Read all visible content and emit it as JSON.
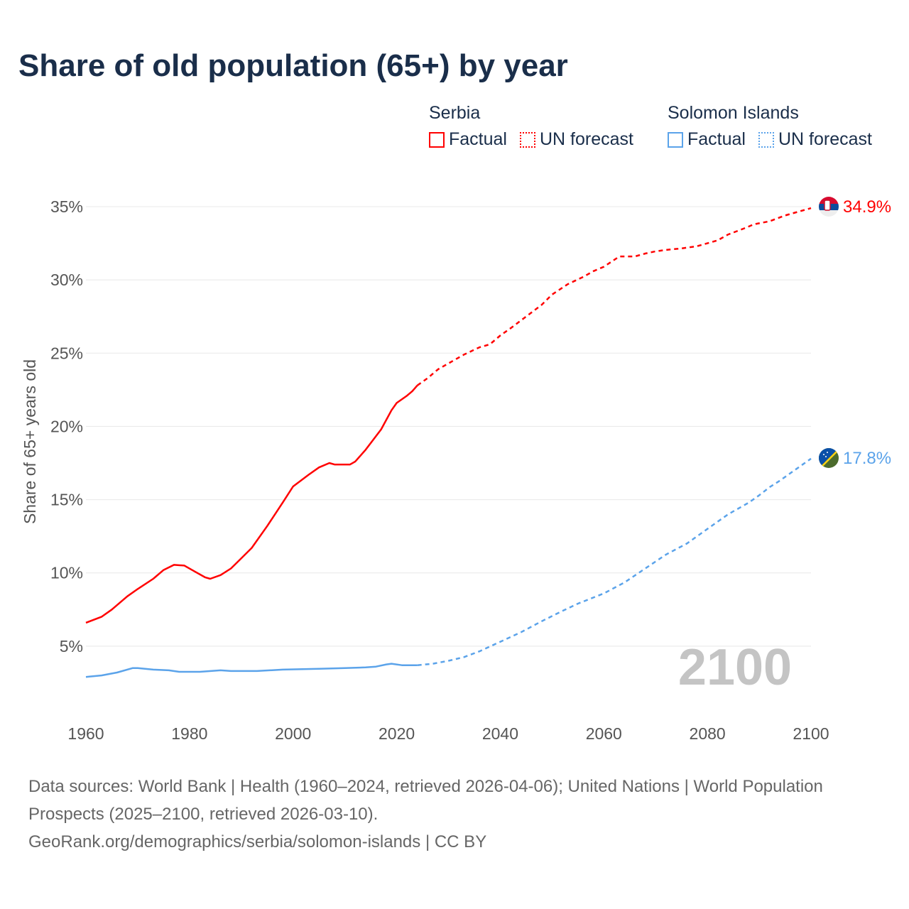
{
  "chart_data": {
    "type": "line",
    "title": "Share of old population (65+) by year",
    "xlabel": "",
    "ylabel": "Share of 65+ years old",
    "xlim": [
      1960,
      2100
    ],
    "ylim": [
      0,
      35
    ],
    "x_ticks": [
      "1960",
      "1980",
      "2000",
      "2020",
      "2040",
      "2060",
      "2080",
      "2100"
    ],
    "y_ticks": [
      {
        "v": 5,
        "label": "5%"
      },
      {
        "v": 10,
        "label": "10%"
      },
      {
        "v": 15,
        "label": "15%"
      },
      {
        "v": 20,
        "label": "20%"
      },
      {
        "v": 25,
        "label": "25%"
      },
      {
        "v": 30,
        "label": "30%"
      },
      {
        "v": 35,
        "label": "35%"
      }
    ],
    "grid": true,
    "year_watermark": "2100",
    "legend": {
      "placement": "top-right",
      "groups": [
        {
          "name": "Serbia",
          "items": [
            "Factual",
            "UN forecast"
          ],
          "color": "#ff0000"
        },
        {
          "name": "Solomon Islands",
          "items": [
            "Factual",
            "UN forecast"
          ],
          "color": "#5ba3ea"
        }
      ]
    },
    "series": [
      {
        "name": "Serbia",
        "color": "#ff0000",
        "end_label": "34.9%",
        "flag": "serbia-flag",
        "factual": [
          [
            1960,
            6.6
          ],
          [
            1963,
            7.0
          ],
          [
            1965,
            7.5
          ],
          [
            1968,
            8.4
          ],
          [
            1970,
            8.9
          ],
          [
            1973,
            9.6
          ],
          [
            1975,
            10.2
          ],
          [
            1977,
            10.55
          ],
          [
            1979,
            10.5
          ],
          [
            1981,
            10.1
          ],
          [
            1983,
            9.7
          ],
          [
            1984,
            9.6
          ],
          [
            1986,
            9.85
          ],
          [
            1988,
            10.3
          ],
          [
            1990,
            11.0
          ],
          [
            1992,
            11.7
          ],
          [
            1995,
            13.2
          ],
          [
            1998,
            14.8
          ],
          [
            2000,
            15.9
          ],
          [
            2003,
            16.7
          ],
          [
            2005,
            17.2
          ],
          [
            2007,
            17.5
          ],
          [
            2008,
            17.4
          ],
          [
            2011,
            17.4
          ],
          [
            2012,
            17.6
          ],
          [
            2014,
            18.4
          ],
          [
            2017,
            19.8
          ],
          [
            2019,
            21.1
          ],
          [
            2020,
            21.6
          ],
          [
            2022,
            22.1
          ],
          [
            2023,
            22.4
          ],
          [
            2024,
            22.8
          ]
        ],
        "forecast": [
          [
            2024,
            22.8
          ],
          [
            2026,
            23.3
          ],
          [
            2028,
            23.9
          ],
          [
            2030,
            24.3
          ],
          [
            2033,
            24.9
          ],
          [
            2036,
            25.4
          ],
          [
            2038,
            25.6
          ],
          [
            2040,
            26.2
          ],
          [
            2042,
            26.7
          ],
          [
            2045,
            27.5
          ],
          [
            2048,
            28.3
          ],
          [
            2050,
            29.0
          ],
          [
            2053,
            29.7
          ],
          [
            2056,
            30.2
          ],
          [
            2058,
            30.6
          ],
          [
            2060,
            30.9
          ],
          [
            2063,
            31.6
          ],
          [
            2066,
            31.6
          ],
          [
            2068,
            31.8
          ],
          [
            2070,
            31.95
          ],
          [
            2072,
            32.05
          ],
          [
            2075,
            32.15
          ],
          [
            2078,
            32.3
          ],
          [
            2082,
            32.7
          ],
          [
            2084,
            33.1
          ],
          [
            2087,
            33.5
          ],
          [
            2089,
            33.8
          ],
          [
            2092,
            34.0
          ],
          [
            2095,
            34.4
          ],
          [
            2098,
            34.7
          ],
          [
            2100,
            34.9
          ]
        ]
      },
      {
        "name": "Solomon Islands",
        "color": "#5ba3ea",
        "end_label": "17.8%",
        "flag": "solomon-islands-flag",
        "factual": [
          [
            1960,
            2.9
          ],
          [
            1963,
            3.0
          ],
          [
            1966,
            3.2
          ],
          [
            1969,
            3.5
          ],
          [
            1970,
            3.5
          ],
          [
            1973,
            3.4
          ],
          [
            1976,
            3.35
          ],
          [
            1978,
            3.25
          ],
          [
            1982,
            3.25
          ],
          [
            1986,
            3.35
          ],
          [
            1988,
            3.3
          ],
          [
            1993,
            3.3
          ],
          [
            1998,
            3.4
          ],
          [
            2005,
            3.45
          ],
          [
            2010,
            3.5
          ],
          [
            2014,
            3.55
          ],
          [
            2016,
            3.6
          ],
          [
            2018,
            3.75
          ],
          [
            2019,
            3.8
          ],
          [
            2021,
            3.7
          ],
          [
            2024,
            3.7
          ]
        ],
        "forecast": [
          [
            2024,
            3.7
          ],
          [
            2027,
            3.8
          ],
          [
            2030,
            4.0
          ],
          [
            2033,
            4.25
          ],
          [
            2036,
            4.65
          ],
          [
            2040,
            5.3
          ],
          [
            2044,
            5.95
          ],
          [
            2048,
            6.7
          ],
          [
            2052,
            7.4
          ],
          [
            2055,
            7.9
          ],
          [
            2060,
            8.6
          ],
          [
            2064,
            9.35
          ],
          [
            2068,
            10.3
          ],
          [
            2072,
            11.25
          ],
          [
            2076,
            12.0
          ],
          [
            2080,
            13.0
          ],
          [
            2084,
            14.0
          ],
          [
            2088,
            14.8
          ],
          [
            2090,
            15.3
          ],
          [
            2092,
            15.85
          ],
          [
            2094,
            16.3
          ],
          [
            2096,
            16.8
          ],
          [
            2098,
            17.3
          ],
          [
            2100,
            17.8
          ]
        ]
      }
    ]
  },
  "legend_labels": {
    "serbia": "Serbia",
    "solomon": "Solomon Islands",
    "factual": "Factual",
    "forecast": "UN forecast"
  },
  "source": {
    "line1": "Data sources: World Bank | Health (1960–2024, retrieved 2026-04-06); United Nations | World Population Prospects (2025–2100, retrieved 2026-03-10).",
    "line2": "GeoRank.org/demographics/serbia/solomon-islands | CC BY"
  }
}
